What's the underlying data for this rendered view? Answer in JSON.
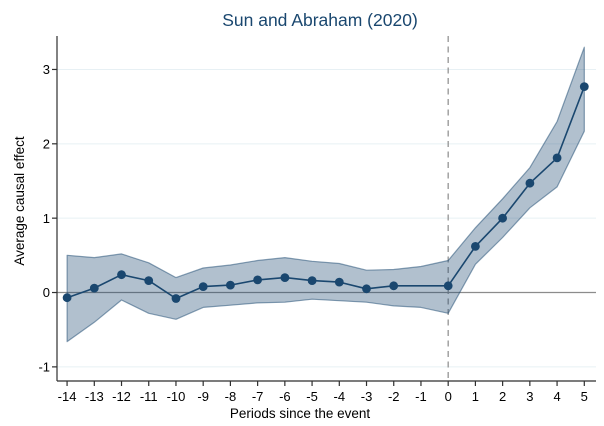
{
  "colors": {
    "title": "#1a476f",
    "series_line": "#1a476f",
    "marker": "#1a476f",
    "band_base": "#1a476f",
    "band_fill_opacity": 0.34,
    "band_edge_opacity": 0.5,
    "grid_line": "#e7f0f4",
    "zero_line": "#8c8c8c",
    "dashed_line": "#949494",
    "axis_line": "#2f2f2f",
    "tick_text": "#000000",
    "axis_title_text": "#000000"
  },
  "chart_data": {
    "type": "line",
    "title": "Sun and Abraham (2020)",
    "xlabel": "Periods since the event",
    "ylabel": "Average causal effect",
    "legend": "none",
    "grid": "horizontal",
    "xlim": [
      -14.37,
      5.43
    ],
    "ylim": [
      -1.19,
      3.45
    ],
    "x_ticks": [
      -14,
      -13,
      -12,
      -11,
      -10,
      -9,
      -8,
      -7,
      -6,
      -5,
      -4,
      -3,
      -2,
      -1,
      0,
      1,
      2,
      3,
      4,
      5
    ],
    "x_tick_labels": [
      "-14",
      "-13",
      "-12",
      "-11",
      "-10",
      "-9",
      "-8",
      "-7",
      "-6",
      "-5",
      "-4",
      "-3",
      "-2",
      "-1",
      "0",
      "1",
      "2",
      "3",
      "4",
      "5"
    ],
    "y_ticks": [
      -1,
      0,
      1,
      2,
      3
    ],
    "y_tick_labels": [
      "-1",
      "0",
      "1",
      "2",
      "3"
    ],
    "reference_lines": {
      "horizontal_y": 0,
      "vertical_x": 0,
      "vertical_style": "dashed"
    },
    "series": [
      {
        "name": "Average causal effect estimate",
        "marker": "filled-circle",
        "omitted_period": -1,
        "x": [
          -14,
          -13,
          -12,
          -11,
          -10,
          -9,
          -8,
          -7,
          -6,
          -5,
          -4,
          -3,
          -2,
          0,
          1,
          2,
          3,
          4,
          5
        ],
        "y": [
          -0.07,
          0.06,
          0.24,
          0.16,
          -0.08,
          0.08,
          0.1,
          0.17,
          0.2,
          0.16,
          0.14,
          0.05,
          0.09,
          0.09,
          0.62,
          1.0,
          1.47,
          1.81,
          2.77
        ]
      }
    ],
    "confidence_band": {
      "x": [
        -14,
        -13,
        -12,
        -11,
        -10,
        -9,
        -8,
        -7,
        -6,
        -5,
        -4,
        -3,
        -2,
        -1,
        0,
        1,
        2,
        3,
        4,
        5
      ],
      "lower": [
        -0.66,
        -0.4,
        -0.1,
        -0.28,
        -0.36,
        -0.2,
        -0.17,
        -0.14,
        -0.13,
        -0.09,
        -0.11,
        -0.13,
        -0.18,
        -0.2,
        -0.28,
        0.38,
        0.74,
        1.14,
        1.42,
        2.17
      ],
      "upper": [
        0.5,
        0.47,
        0.52,
        0.4,
        0.2,
        0.33,
        0.37,
        0.43,
        0.47,
        0.42,
        0.39,
        0.3,
        0.31,
        0.35,
        0.43,
        0.87,
        1.26,
        1.68,
        2.3,
        3.3
      ]
    }
  }
}
